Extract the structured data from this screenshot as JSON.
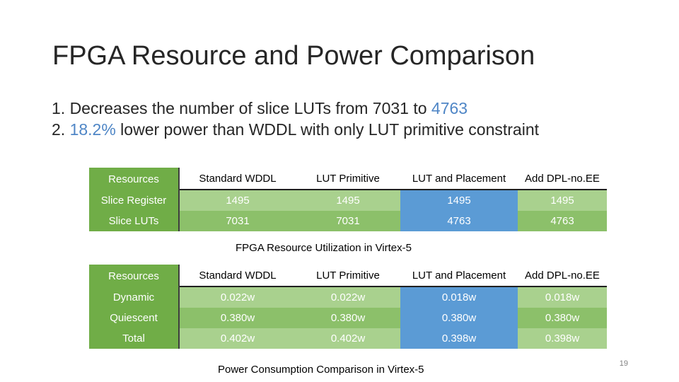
{
  "slide": {
    "title": "FPGA Resource and Power Comparison",
    "bullet1": {
      "prefix": "1. Decreases the number of slice LUTs from 7031 to ",
      "highlight": "4763"
    },
    "bullet2": {
      "prefix": "2. ",
      "highlight": "18.2%",
      "suffix": " lower power than WDDL with only LUT primitive constraint"
    },
    "page_number": "19"
  },
  "table1": {
    "headers": [
      "Resources",
      "Standard WDDL",
      "LUT Primitive",
      "LUT and Placement",
      "Add DPL-no.EE"
    ],
    "rows": [
      [
        "Slice Register",
        "1495",
        "1495",
        "1495",
        "1495"
      ],
      [
        "Slice LUTs",
        "7031",
        "7031",
        "4763",
        "4763"
      ]
    ],
    "caption": "FPGA Resource Utilization in Virtex-5"
  },
  "table2": {
    "headers": [
      "Resources",
      "Standard WDDL",
      "LUT Primitive",
      "LUT and Placement",
      "Add DPL-no.EE"
    ],
    "rows": [
      [
        "Dynamic",
        "0.022w",
        "0.022w",
        "0.018w",
        "0.018w"
      ],
      [
        "Quiescent",
        "0.380w",
        "0.380w",
        "0.380w",
        "0.380w"
      ],
      [
        "Total",
        "0.402w",
        "0.402w",
        "0.398w",
        "0.398w"
      ]
    ],
    "caption": "Power Consumption Comparison in Virtex-5"
  },
  "colors": {
    "header_green": "#70ad47",
    "row_light_green": "#a9d18e",
    "row_mid_green": "#8cc06a",
    "highlight_blue": "#5b9bd5",
    "text_highlight": "#4f86c6"
  }
}
